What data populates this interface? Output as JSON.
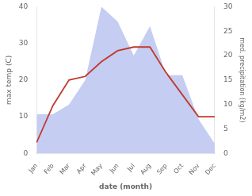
{
  "chart_data": {
    "type": "line",
    "categories": [
      "Jan",
      "Feb",
      "Mar",
      "Apr",
      "May",
      "Jun",
      "Jul",
      "Aug",
      "Sep",
      "Oct",
      "Nov",
      "Dec"
    ],
    "xlabel": "date (month)",
    "ylabel": "max temp (C)",
    "y2label": "med. precipitation (kg/m2)",
    "series": [
      {
        "type": "area",
        "color": "#c5cdf2",
        "axis": "y2",
        "values": [
          8,
          8,
          10,
          15,
          30,
          27,
          20,
          26,
          16,
          16,
          7,
          2
        ]
      },
      {
        "type": "line",
        "color": "#c0392b",
        "values": [
          3,
          13,
          20,
          21,
          25,
          28,
          29,
          29,
          22,
          16,
          10,
          10
        ]
      }
    ],
    "ylim": [
      0,
      40
    ],
    "yticks": [
      0,
      10,
      20,
      30,
      40
    ],
    "y2lim": [
      0,
      30
    ],
    "y2ticks": [
      0,
      5,
      10,
      15,
      20,
      25,
      30
    ],
    "grid": false
  }
}
